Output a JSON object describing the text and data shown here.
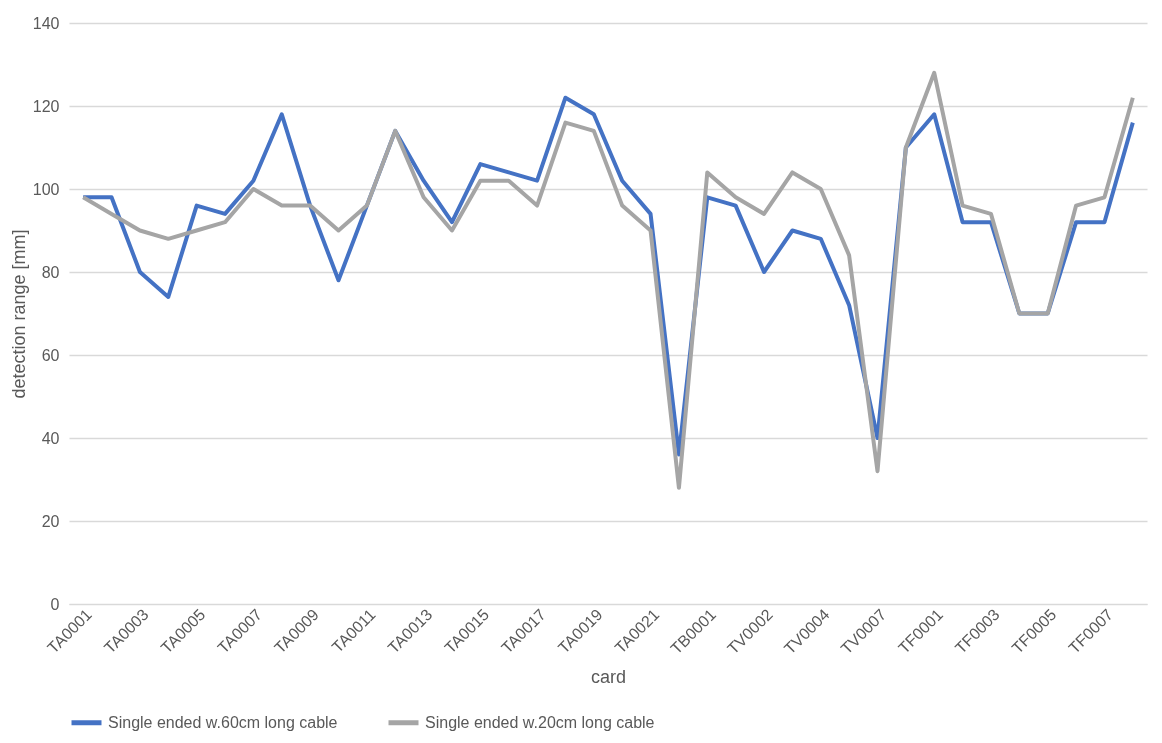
{
  "chart_data": {
    "type": "line",
    "xlabel": "card",
    "ylabel": "detection range [mm]",
    "categories": [
      "TA0001",
      null,
      "TA0003",
      null,
      "TA0005",
      null,
      "TA0007",
      null,
      "TA0009",
      null,
      "TA0011",
      null,
      "TA0013",
      null,
      "TA0015",
      null,
      "TA0017",
      null,
      "TA0019",
      null,
      "TA0021",
      null,
      "TB0001",
      null,
      "TV0002",
      null,
      "TV0004",
      null,
      "TV0007",
      null,
      "TF0001",
      null,
      "TF0003",
      null,
      "TF0005",
      null,
      "TF0007",
      null
    ],
    "series": [
      {
        "name": "Single ended w.60cm long cable",
        "color": "#4472c4",
        "values": [
          98,
          98,
          80,
          74,
          96,
          94,
          102,
          118,
          96,
          78,
          96,
          114,
          102,
          92,
          106,
          104,
          102,
          122,
          118,
          102,
          94,
          36,
          98,
          96,
          80,
          90,
          88,
          72,
          40,
          110,
          118,
          92,
          92,
          70,
          70,
          92,
          92,
          116
        ]
      },
      {
        "name": "Single ended w.20cm long cable",
        "color": "#a5a5a5",
        "values": [
          98,
          94,
          90,
          88,
          90,
          92,
          100,
          96,
          96,
          90,
          96,
          114,
          98,
          90,
          102,
          102,
          96,
          116,
          114,
          96,
          90,
          28,
          104,
          98,
          94,
          104,
          100,
          84,
          32,
          110,
          128,
          96,
          94,
          70,
          70,
          96,
          98,
          122
        ]
      }
    ],
    "ylim": [
      0,
      140
    ],
    "yticks": [
      0,
      20,
      40,
      60,
      80,
      100,
      120,
      140
    ],
    "grid": "y",
    "legend": "bottom",
    "marker": "none",
    "line_style": "solid"
  }
}
